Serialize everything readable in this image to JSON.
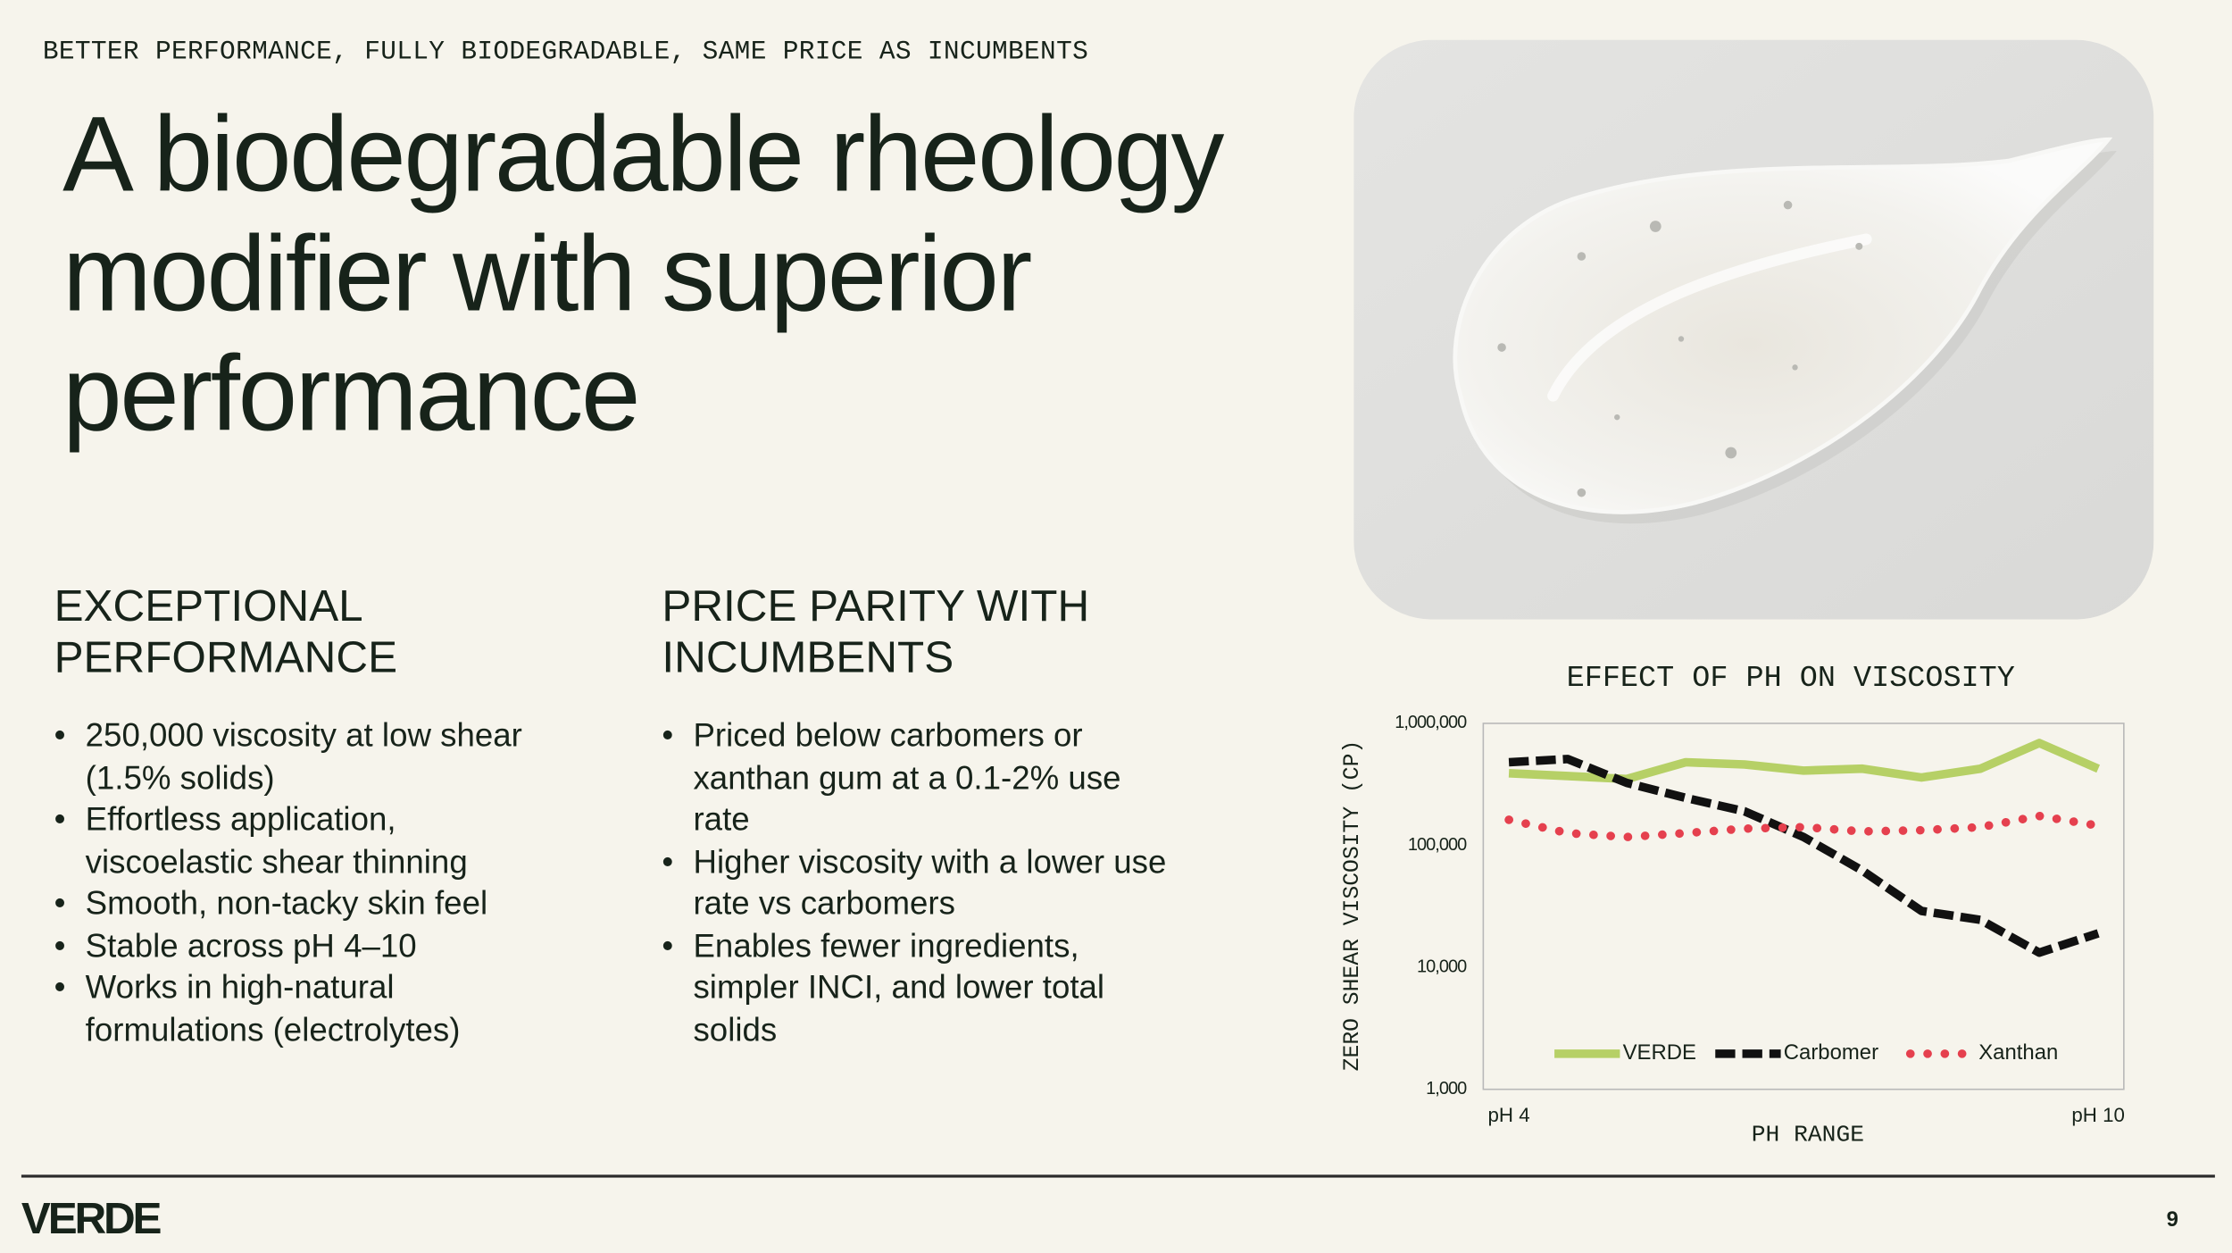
{
  "header": {
    "kicker": "BETTER PERFORMANCE, FULLY BIODEGRADABLE, SAME PRICE AS INCUMBENTS",
    "title": "A biodegradable rheology modifier with superior performance"
  },
  "sections": [
    {
      "heading": "EXCEPTIONAL PERFORMANCE",
      "bullets": [
        "250,000 viscosity at low shear (1.5% solids)",
        "Effortless application, viscoelastic shear thinning",
        "Smooth, non-tacky skin feel",
        "Stable across pH 4–10",
        "Works in high-natural formulations (electrolytes)"
      ]
    },
    {
      "heading": "PRICE PARITY WITH INCUMBENTS",
      "bullets": [
        "Priced below carbomers or xanthan gum at a 0.1-2% use rate",
        "Higher viscosity with a lower use rate vs carbomers",
        "Enables fewer ingredients, simpler INCI, and lower total solids"
      ]
    }
  ],
  "chart_data": {
    "type": "line",
    "title": "EFFECT OF PH ON VISCOSITY",
    "x_label": "PH RANGE",
    "y_label": "ZERO SHEAR VISCOSITY (CP)",
    "categories": [
      "pH 4",
      null,
      null,
      null,
      null,
      null,
      null,
      null,
      null,
      null,
      "pH 10"
    ],
    "series": [
      {
        "name": "VERDE",
        "color": "#b6d066",
        "style": "solid",
        "values": [
          390000,
          370000,
          350000,
          480000,
          460000,
          410000,
          425000,
          360000,
          425000,
          690000,
          425000
        ]
      },
      {
        "name": "Carbomer",
        "color": "#111111",
        "style": "dashed",
        "values": [
          480000,
          510000,
          325000,
          245000,
          190000,
          117000,
          62000,
          29000,
          24500,
          13200,
          19000
        ]
      },
      {
        "name": "Xanthan",
        "color": "#e5404e",
        "style": "dotted",
        "values": [
          162000,
          126000,
          117000,
          126000,
          137000,
          141000,
          130000,
          133000,
          141000,
          174000,
          145000
        ]
      }
    ],
    "ylim": [
      1000,
      1000000
    ],
    "log_y": true,
    "grid": false,
    "legend": "bottom",
    "yticks": [
      {
        "value": 1000,
        "label": "1,000"
      },
      {
        "value": 10000,
        "label": "10,000"
      },
      {
        "value": 100000,
        "label": "100,000"
      },
      {
        "value": 1000000,
        "label": "1,000,000"
      }
    ]
  },
  "footer": {
    "logo": "VERDE",
    "page": "9"
  }
}
